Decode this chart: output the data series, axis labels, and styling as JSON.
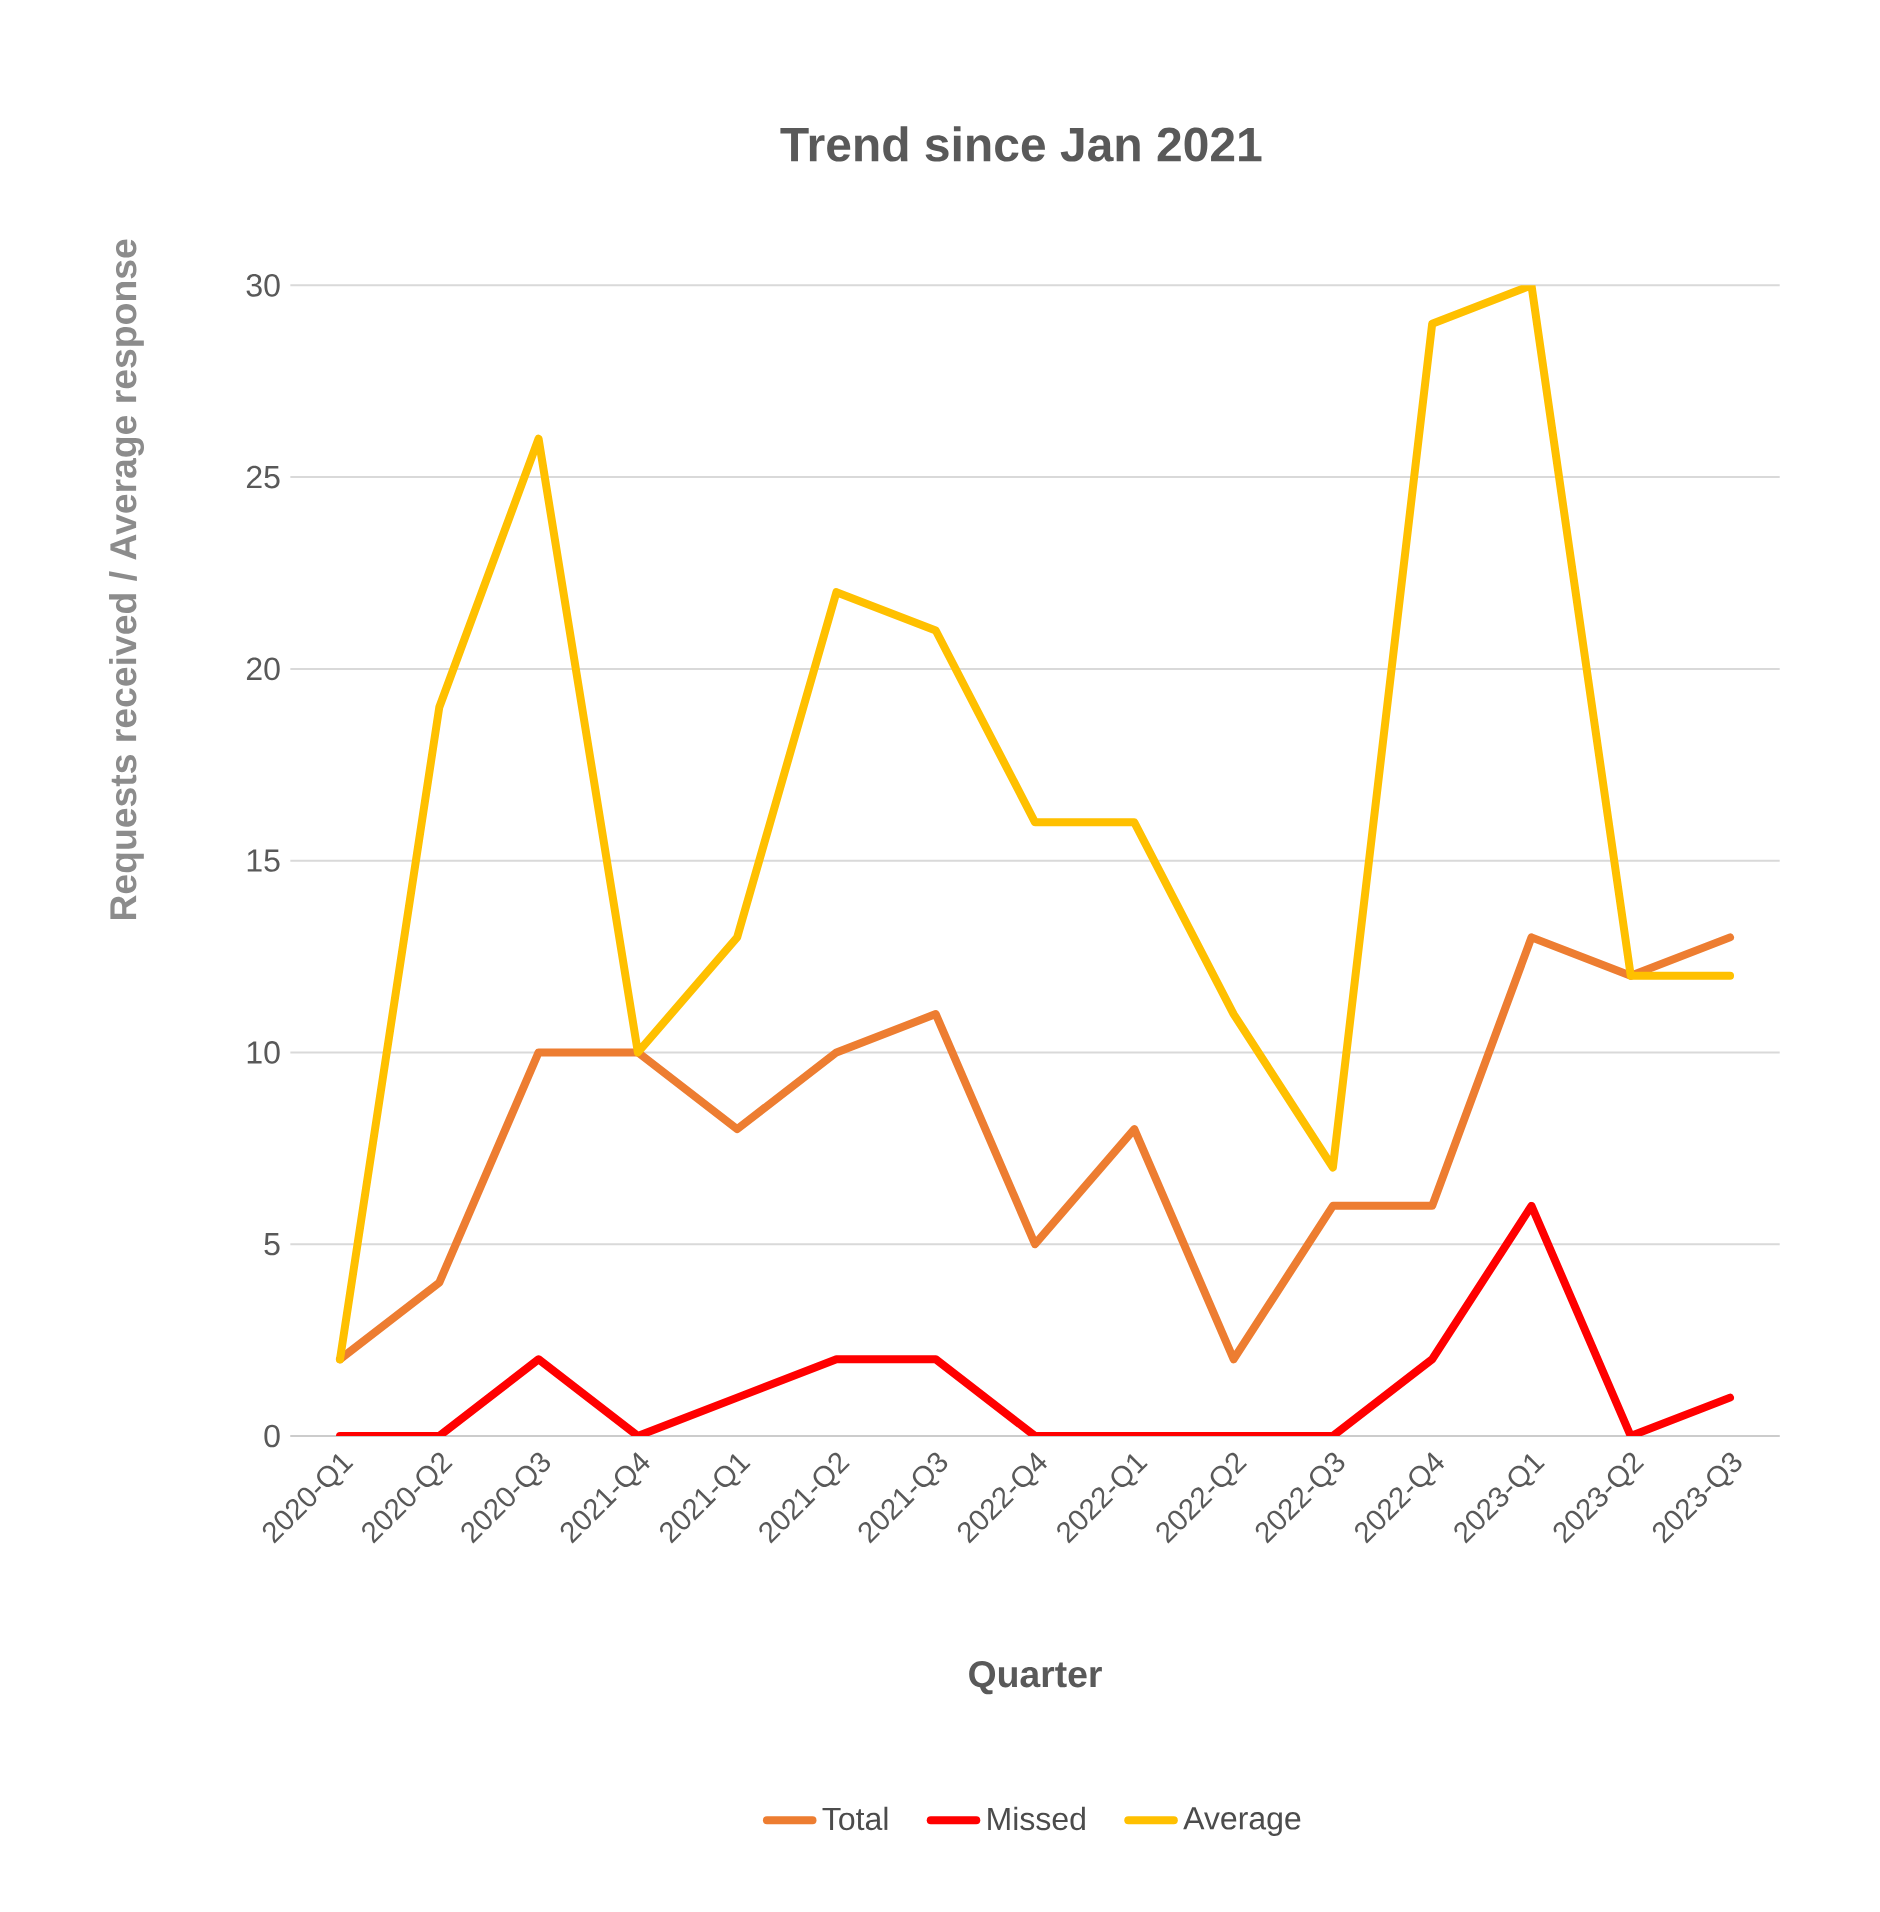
{
  "chart_data": {
    "type": "line",
    "title": "Trend since Jan 2021",
    "xlabel": "Quarter",
    "ylabel": "Requests received / Average response",
    "categories": [
      "2020-Q1",
      "2020-Q2",
      "2020-Q3",
      "2021-Q4",
      "2021-Q1",
      "2021-Q2",
      "2021-Q3",
      "2022-Q4",
      "2022-Q1",
      "2022-Q2",
      "2022-Q3",
      "2022-Q4",
      "2023-Q1",
      "2023-Q2",
      "2023-Q3"
    ],
    "series": [
      {
        "name": "Total",
        "color": "#ed7d31",
        "values": [
          2,
          4,
          10,
          10,
          8,
          10,
          11,
          5,
          8,
          2,
          6,
          6,
          13,
          12,
          13
        ]
      },
      {
        "name": "Missed",
        "color": "#ff0000",
        "values": [
          0,
          0,
          2,
          0,
          1,
          2,
          2,
          0,
          0,
          0,
          0,
          2,
          6,
          0,
          1
        ]
      },
      {
        "name": "Average",
        "color": "#ffc000",
        "values": [
          2,
          19,
          26,
          10,
          13,
          22,
          21,
          16,
          16,
          11,
          7,
          29,
          30,
          12,
          12
        ]
      }
    ],
    "ylim": [
      0,
      30
    ],
    "yticks": [
      0,
      5,
      10,
      15,
      20,
      25,
      30
    ],
    "grid": "y",
    "legend": "bottom",
    "marker": "none",
    "line_style": "solid"
  }
}
